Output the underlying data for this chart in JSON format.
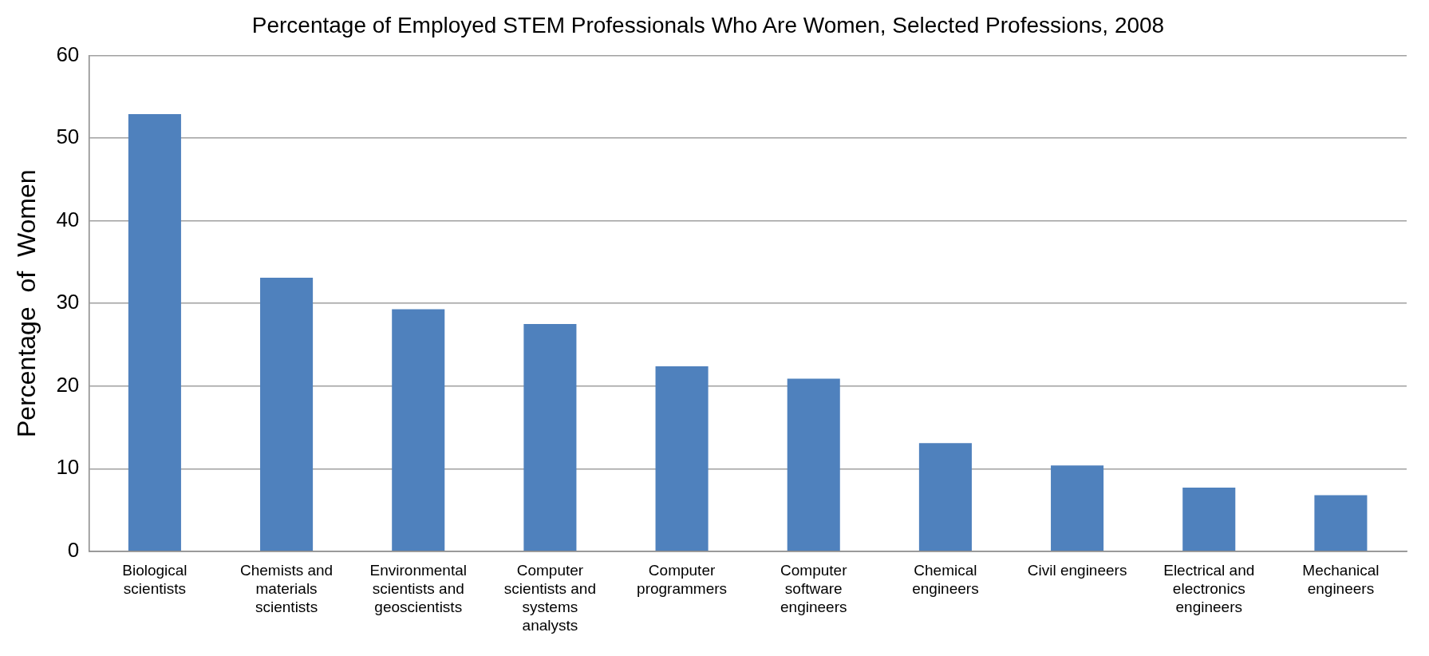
{
  "chart_data": {
    "type": "bar",
    "title": "Percentage of Employed STEM Professionals Who Are Women, Selected Professions, 2008",
    "ylabel": "Percentage  of  Women",
    "categories": [
      "Biological scientists",
      "Chemists and materials scientists",
      "Environmental scientists and geoscientists",
      "Computer scientists and systems analysts",
      "Computer programmers",
      "Computer software engineers",
      "Chemical engineers",
      "Civil engineers",
      "Electrical and electronics engineers",
      "Mechanical engineers"
    ],
    "values": [
      52.9,
      33.1,
      29.3,
      27.5,
      22.4,
      20.9,
      13.1,
      10.4,
      7.7,
      6.8
    ],
    "color": "#4f81bd",
    "ylim": [
      0,
      60
    ],
    "yticks": [
      0,
      10,
      20,
      30,
      40,
      50,
      60
    ],
    "grid": "y",
    "legend": false
  }
}
